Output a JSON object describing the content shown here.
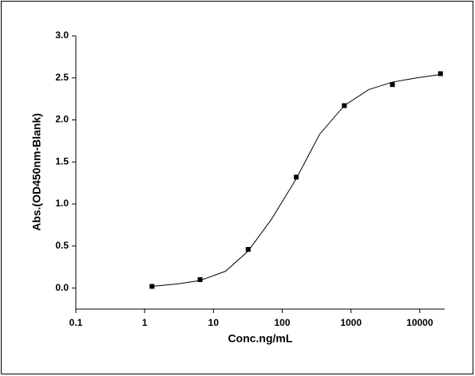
{
  "chart_data": {
    "type": "scatter",
    "x_label": "Conc.ng/mL",
    "y_label": "Abs.(OD450nm-Blank)",
    "xscale": "log",
    "xlim": [
      0.1,
      23000
    ],
    "xticks": [
      0.1,
      1,
      10,
      100,
      1000,
      10000
    ],
    "ylim": [
      -0.25,
      3.0
    ],
    "yticks": [
      {
        "value": 0,
        "label": "0.0"
      },
      0.5,
      {
        "value": 1,
        "label": "1.0"
      },
      1.5,
      {
        "value": 2,
        "label": "2.0"
      },
      2.5,
      {
        "value": 3,
        "label": "3.0"
      }
    ],
    "grid": false,
    "series": [
      {
        "style": "line",
        "color": "#000000",
        "x": [
          1.28,
          3,
          6.4,
          15,
          32,
          70,
          160,
          350,
          800,
          1800,
          4000,
          9000,
          20000
        ],
        "values": [
          0.02,
          0.05,
          0.09,
          0.2,
          0.44,
          0.82,
          1.3,
          1.83,
          2.17,
          2.36,
          2.45,
          2.5,
          2.54
        ]
      },
      {
        "style": "markers",
        "color": "#000000",
        "x": [
          1.28,
          6.4,
          32,
          160,
          800,
          4000,
          20000
        ],
        "values": [
          0.02,
          0.1,
          0.46,
          1.32,
          2.17,
          2.42,
          2.55
        ]
      }
    ]
  }
}
